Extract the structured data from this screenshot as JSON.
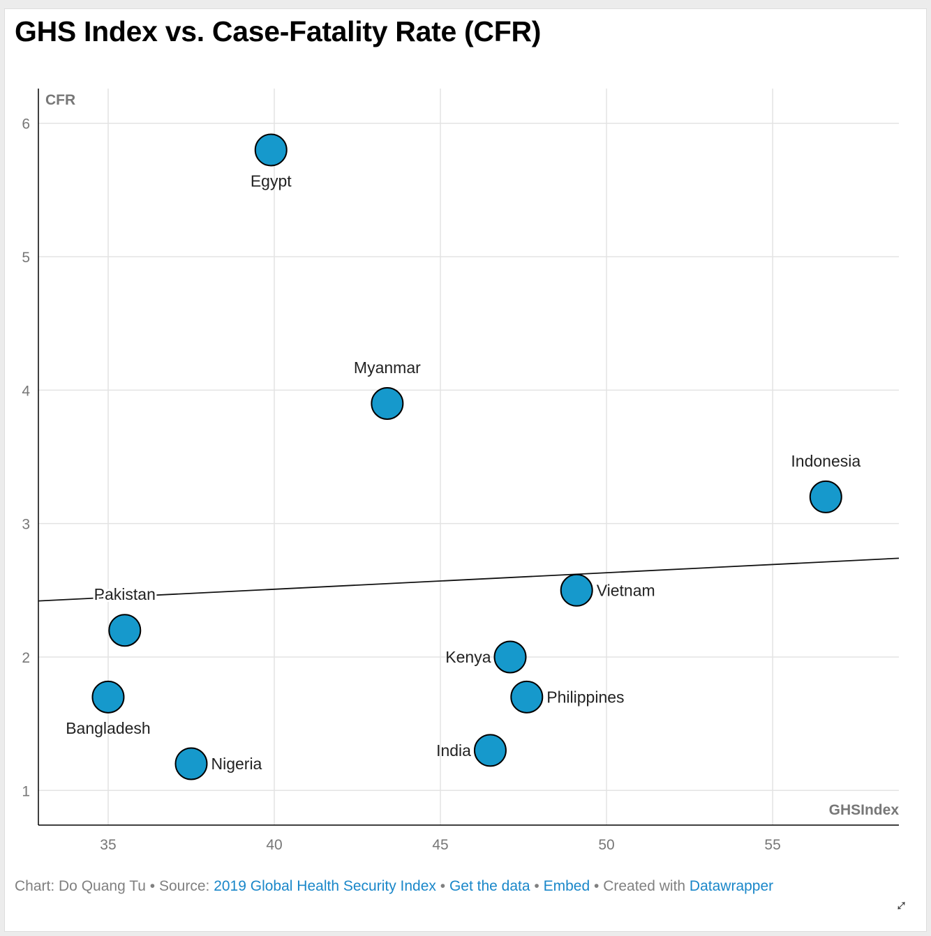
{
  "title": "GHS Index vs. Case-Fatality Rate (CFR)",
  "footer": {
    "chart_by": "Chart: Do Quang Tu",
    "source_label": "Source:",
    "source_link": "2019 Global Health Security Index",
    "get_data": "Get the data",
    "embed": "Embed",
    "created_with": "Created with",
    "datawrapper": "Datawrapper",
    "separator": "•"
  },
  "colors": {
    "point_fill": "#1699cc",
    "point_stroke": "#000000",
    "grid": "#e3e3e3",
    "axis": "#000000",
    "tick_text": "#777777",
    "label_text": "#222222",
    "link": "#1a87c9"
  },
  "chart_data": {
    "type": "scatter",
    "title": "GHS Index vs. Case-Fatality Rate (CFR)",
    "xlabel": "GHSIndex",
    "ylabel": "CFR",
    "xlim": [
      32.9,
      58.8
    ],
    "ylim": [
      0.74,
      6.26
    ],
    "xticks": [
      35,
      40,
      45,
      50,
      55
    ],
    "yticks": [
      1,
      2,
      3,
      4,
      5,
      6
    ],
    "grid": true,
    "trendline": {
      "x": [
        32.9,
        58.8
      ],
      "y": [
        2.42,
        2.74
      ]
    },
    "points": [
      {
        "label": "Egypt",
        "x": 39.9,
        "y": 5.8,
        "label_pos": "below"
      },
      {
        "label": "Myanmar",
        "x": 43.4,
        "y": 3.9,
        "label_pos": "above"
      },
      {
        "label": "Indonesia",
        "x": 56.6,
        "y": 3.2,
        "label_pos": "above"
      },
      {
        "label": "Vietnam",
        "x": 49.1,
        "y": 2.5,
        "label_pos": "right"
      },
      {
        "label": "Pakistan",
        "x": 35.5,
        "y": 2.2,
        "label_pos": "above"
      },
      {
        "label": "Kenya",
        "x": 47.1,
        "y": 2.0,
        "label_pos": "left"
      },
      {
        "label": "Bangladesh",
        "x": 35.0,
        "y": 1.7,
        "label_pos": "below"
      },
      {
        "label": "Philippines",
        "x": 47.6,
        "y": 1.7,
        "label_pos": "right"
      },
      {
        "label": "India",
        "x": 46.5,
        "y": 1.3,
        "label_pos": "left"
      },
      {
        "label": "Nigeria",
        "x": 37.5,
        "y": 1.2,
        "label_pos": "right"
      }
    ]
  }
}
